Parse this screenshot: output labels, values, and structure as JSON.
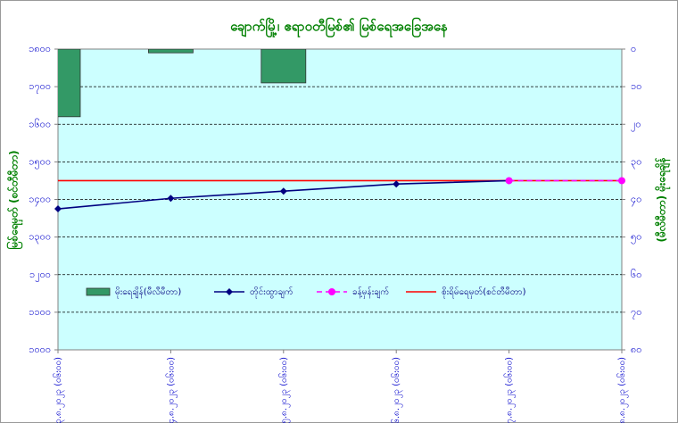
{
  "chart_data": {
    "type": "combo",
    "title": "ချောက်မြို့၊ ဧရာဝတီမြစ်၏ မြစ်ရေအခြေအနေ",
    "ylabel": "မြစ်ရေမှတ် (စင်တီမီတာ)",
    "y2label": "(မီလီမီတာ) မိုးရေချိန်",
    "categories": [
      "၂၃.၈.၂၀၂၃ (၀၆း၀၀)",
      "၂၄.၈.၂၀၂၃ (၀၆း၀၀)",
      "၂၅.၈.၂၀၂၃ (၀၆း၀၀)",
      "၂၆.၈.၂၀၂၃ (၀၆း၀၀)",
      "၂၇.၈.၂၀၂၃ (၀၆း၀၀)",
      "၂၈.၈.၂၀၂၃ (၀၆း၀၀)"
    ],
    "series": [
      {
        "name": "မိုးရေချိန်(မီလီမီတာ)",
        "kind": "bar",
        "axis": "y2",
        "color": "#339966",
        "values": [
          18,
          1,
          9,
          null,
          null,
          null
        ]
      },
      {
        "name": "တိုင်းထွာချက်",
        "kind": "line",
        "color": "#000080",
        "marker": "diamond",
        "values": [
          1375,
          1403,
          1422,
          1441,
          1450,
          null
        ]
      },
      {
        "name": "ခန့်မှန်းချက်",
        "kind": "dashed-line",
        "color": "#ff00ff",
        "marker": "circle",
        "values": [
          null,
          null,
          null,
          null,
          1450,
          1450
        ]
      }
    ],
    "reference_line": {
      "name": "စိုးရိမ်ရေမှတ်(စင်တီမီတာ)",
      "color": "#ff0000",
      "value": 1450
    },
    "ylim": [
      1000,
      1800
    ],
    "yticks": [
      {
        "value": 1000,
        "label": "၁၀၀၀"
      },
      {
        "value": 1100,
        "label": "၁၁၀၀"
      },
      {
        "value": 1200,
        "label": "၁၂၀၀"
      },
      {
        "value": 1300,
        "label": "၁၃၀၀"
      },
      {
        "value": 1400,
        "label": "၁၄၀၀"
      },
      {
        "value": 1500,
        "label": "၁၅၀၀"
      },
      {
        "value": 1600,
        "label": "၁၆၀၀"
      },
      {
        "value": 1700,
        "label": "၁၇၀၀"
      },
      {
        "value": 1800,
        "label": "၁၈၀၀"
      }
    ],
    "y2lim": [
      0,
      80
    ],
    "y2_inverted": true,
    "y2ticks": [
      {
        "value": 0,
        "label": "၀"
      },
      {
        "value": 10,
        "label": "၁၀"
      },
      {
        "value": 20,
        "label": "၂၀"
      },
      {
        "value": 30,
        "label": "၃၀"
      },
      {
        "value": 40,
        "label": "၄၀"
      },
      {
        "value": 50,
        "label": "၅၀"
      },
      {
        "value": 60,
        "label": "၆၀"
      },
      {
        "value": 70,
        "label": "၇၀"
      },
      {
        "value": 80,
        "label": "၈၀"
      }
    ],
    "grid": true
  }
}
